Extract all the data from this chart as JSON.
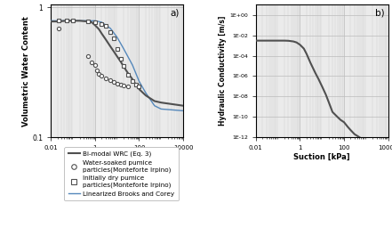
{
  "panel_a": {
    "xlabel": "Suction [kPa]",
    "ylabel": "Volumetric Water Content",
    "xlim": [
      0.01,
      10000
    ],
    "ylim": [
      0.1,
      1.2
    ],
    "label": "a)",
    "bimodal_x": [
      0.01,
      0.02,
      0.05,
      0.1,
      0.2,
      0.3,
      0.5,
      0.7,
      1.0,
      1.5,
      2.0,
      3.0,
      5.0,
      7.0,
      10.0,
      15.0,
      20.0,
      30.0,
      50.0,
      70.0,
      100.0,
      150.0,
      200.0,
      500.0,
      1000.0,
      10000.0
    ],
    "bimodal_y": [
      0.78,
      0.78,
      0.79,
      0.79,
      0.79,
      0.785,
      0.78,
      0.77,
      0.73,
      0.68,
      0.63,
      0.57,
      0.5,
      0.46,
      0.42,
      0.38,
      0.35,
      0.315,
      0.28,
      0.255,
      0.235,
      0.22,
      0.21,
      0.19,
      0.185,
      0.175
    ],
    "brooks_x": [
      0.01,
      0.05,
      0.1,
      0.3,
      0.5,
      1.0,
      2.0,
      5.0,
      10.0,
      20.0,
      50.0,
      100.0,
      200.0,
      500.0,
      1000.0,
      10000.0
    ],
    "brooks_y": [
      0.79,
      0.79,
      0.79,
      0.79,
      0.79,
      0.79,
      0.77,
      0.69,
      0.59,
      0.48,
      0.36,
      0.27,
      0.22,
      0.175,
      0.165,
      0.16
    ],
    "water_soaked_x": [
      0.022,
      0.5,
      0.7,
      1.0,
      1.2,
      1.5,
      2.0,
      3.0,
      5.0,
      7.0,
      10.0,
      15.0,
      20.0,
      30.0
    ],
    "water_soaked_y": [
      0.69,
      0.42,
      0.38,
      0.36,
      0.33,
      0.31,
      0.3,
      0.285,
      0.275,
      0.265,
      0.26,
      0.255,
      0.25,
      0.245
    ],
    "dry_x": [
      0.022,
      0.05,
      0.1,
      0.5,
      1.0,
      2.0,
      3.0,
      5.0,
      7.0,
      10.0,
      15.0,
      20.0,
      30.0,
      50.0,
      70.0,
      100.0
    ],
    "dry_y": [
      0.79,
      0.79,
      0.79,
      0.785,
      0.775,
      0.745,
      0.72,
      0.65,
      0.575,
      0.48,
      0.4,
      0.355,
      0.305,
      0.27,
      0.255,
      0.245
    ],
    "bimodal_color": "#505050",
    "brooks_color": "#5588bb",
    "marker_color": "#505050"
  },
  "panel_b": {
    "xlabel": "Suction [kPa]",
    "ylabel": "Hydraulic Conductivity [m/s]",
    "xlim": [
      0.01,
      10000
    ],
    "ylim": [
      1e-12,
      10
    ],
    "label": "b)",
    "hc_x": [
      0.01,
      0.02,
      0.05,
      0.1,
      0.2,
      0.3,
      0.5,
      0.7,
      1.0,
      1.5,
      2.0,
      3.0,
      5.0,
      7.0,
      10.0,
      15.0,
      20.0,
      30.0,
      50.0,
      70.0,
      100.0,
      150.0,
      200.0,
      300.0,
      500.0
    ],
    "hc_y": [
      0.003,
      0.003,
      0.003,
      0.003,
      0.003,
      0.0029,
      0.0025,
      0.002,
      0.0012,
      0.0005,
      0.00015,
      2e-05,
      2e-06,
      5e-07,
      1e-07,
      1.5e-08,
      3e-09,
      3e-10,
      1e-10,
      5e-11,
      3e-11,
      1e-11,
      5e-12,
      2e-12,
      1e-12
    ],
    "hc_color": "#505050"
  },
  "legend": {
    "bimodal_label": "Bi-modal WRC (Eq. 3)",
    "water_soaked_label": "Water-soaked pumice\nparticles(Monteforte Irpino)",
    "dry_label": "Initially dry pumice\nparticles(Monteforte Irpino)",
    "brooks_label": "Linearized Brooks and Corey"
  },
  "figure": {
    "bg_color": "#ebebeb",
    "grid_color": "#cccccc",
    "grid_color_major": "#bbbbbb"
  }
}
